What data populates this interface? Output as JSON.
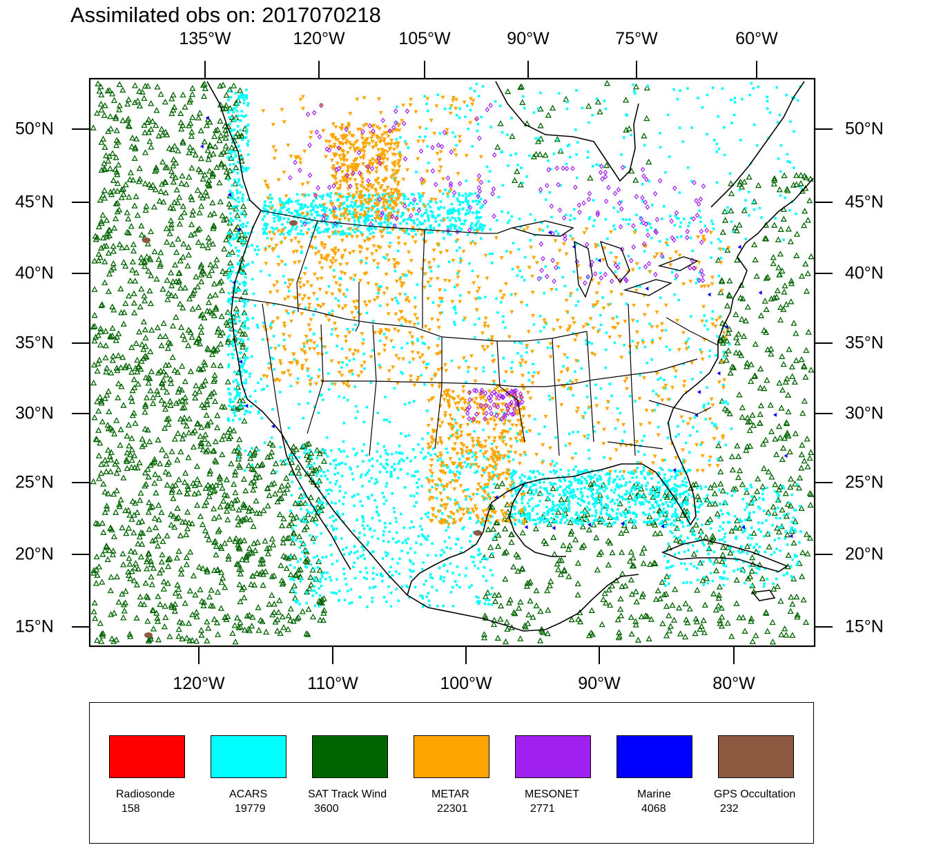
{
  "title": "Assimilated obs on: 2017070218",
  "axes": {
    "top_longitudes": [
      "135°W",
      "120°W",
      "105°W",
      "90°W",
      "75°W",
      "60°W"
    ],
    "bottom_longitudes": [
      "120°W",
      "110°W",
      "100°W",
      "90°W",
      "80°W"
    ],
    "left_latitudes": [
      "50°N",
      "45°N",
      "40°N",
      "35°N",
      "30°N",
      "25°N",
      "20°N",
      "15°N"
    ],
    "right_latitudes": [
      "50°N",
      "45°N",
      "40°N",
      "35°N",
      "30°N",
      "25°N",
      "20°N",
      "15°N"
    ]
  },
  "map_icons": [
    "coastline-icon",
    "state-borders-icon",
    "observation-markers-icon"
  ],
  "legend": [
    {
      "label": "Radiosonde",
      "count": "158",
      "color": "#ff0000"
    },
    {
      "label": "ACARS",
      "count": "19779",
      "color": "#00ffff"
    },
    {
      "label": "SAT Track Wind",
      "count": "3600",
      "color": "#006400"
    },
    {
      "label": "METAR",
      "count": "22301",
      "color": "#ffa500"
    },
    {
      "label": "MESONET",
      "count": "2771",
      "color": "#a020f0"
    },
    {
      "label": "Marine",
      "count": "4068",
      "color": "#0000ff"
    },
    {
      "label": "GPS Occultation",
      "count": "232",
      "color": "#8b5a40"
    }
  ]
}
